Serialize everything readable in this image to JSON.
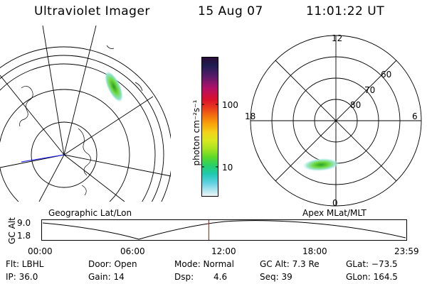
{
  "header": {
    "instrument": "Ultraviolet Imager",
    "date": "15 Aug 07",
    "time": "11:01:22 UT"
  },
  "colorbar": {
    "unit": "photon cm⁻²s⁻¹",
    "ticks": [
      "100",
      "10"
    ],
    "colors": [
      "#2a0a38",
      "#1e1e50",
      "#5a1a6a",
      "#b0106a",
      "#d80e2e",
      "#e8381e",
      "#f26f10",
      "#f8a40a",
      "#f2d21a",
      "#d8e820",
      "#a6e220",
      "#5ad82a",
      "#26d06a",
      "#20c8b0",
      "#5ad0e0",
      "#a8e2ee",
      "#ddf0f6",
      "#f4f8fa"
    ]
  },
  "left_map": {
    "caption": "Geographic Lat/Lon"
  },
  "right_map": {
    "caption": "Apex MLat/MLT",
    "mlt_labels": [
      "12",
      "18",
      "6",
      "0"
    ],
    "lat_labels": [
      "60",
      "70",
      "80"
    ]
  },
  "timeline": {
    "ylabel": "GC Alt",
    "ytick_top": "9.0",
    "ytick_bottom": "1.8",
    "xticks": [
      "00:00",
      "06:00",
      "12:00",
      "18:00",
      "23:59"
    ],
    "current_time_fraction": 0.458
  },
  "info": {
    "filter": "Flt: LBHL",
    "ip": "IP: 36.0",
    "door": "Door: Open",
    "gain": "Gain: 14",
    "mode": "Mode: Normal",
    "dsp_label": "Dsp:",
    "dsp_value": "4.6",
    "gc_alt": "GC Alt: 7.3 Re",
    "seq": "Seq: 39",
    "glat": "GLat: −73.5",
    "glon": "GLon: 164.5"
  }
}
